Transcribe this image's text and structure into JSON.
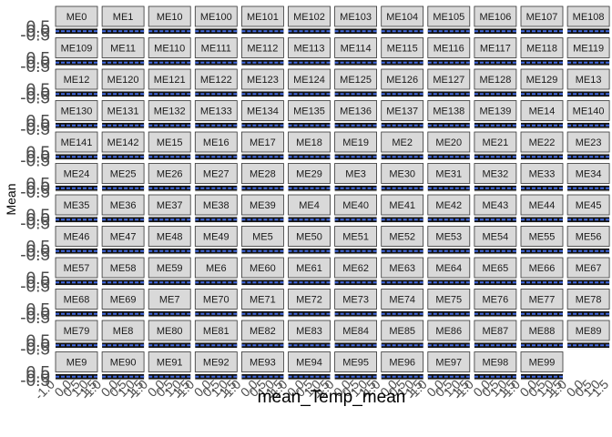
{
  "chart_data": {
    "type": "line",
    "layout": "facet_wrap",
    "ncol": 12,
    "xlabel": "mean_Temp_mean",
    "ylabel": "Mean",
    "y_tick_labels": [
      "-0.5",
      "0.0",
      "0.5"
    ],
    "x_tick_labels": [
      "-1.0",
      "0.0",
      "0.5",
      "1.0",
      "1.5"
    ],
    "xlim": [
      -1.0,
      1.5
    ],
    "ylim": [
      -0.5,
      0.5
    ],
    "grid": true,
    "legend": "none",
    "colors": {
      "line": "#4169e1",
      "ribbon": "#000000",
      "strip_fill": "#d9d9d9",
      "strip_border": "#333333",
      "panel_bg": "#ebebeb"
    },
    "panels": [
      "ME0",
      "ME1",
      "ME10",
      "ME100",
      "ME101",
      "ME102",
      "ME103",
      "ME104",
      "ME105",
      "ME106",
      "ME107",
      "ME108",
      "ME109",
      "ME11",
      "ME110",
      "ME111",
      "ME112",
      "ME113",
      "ME114",
      "ME115",
      "ME116",
      "ME117",
      "ME118",
      "ME119",
      "ME12",
      "ME120",
      "ME121",
      "ME122",
      "ME123",
      "ME124",
      "ME125",
      "ME126",
      "ME127",
      "ME128",
      "ME129",
      "ME13",
      "ME130",
      "ME131",
      "ME132",
      "ME133",
      "ME134",
      "ME135",
      "ME136",
      "ME137",
      "ME138",
      "ME139",
      "ME14",
      "ME140",
      "ME141",
      "ME142",
      "ME15",
      "ME16",
      "ME17",
      "ME18",
      "ME19",
      "ME2",
      "ME20",
      "ME21",
      "ME22",
      "ME23",
      "ME24",
      "ME25",
      "ME26",
      "ME27",
      "ME28",
      "ME29",
      "ME3",
      "ME30",
      "ME31",
      "ME32",
      "ME33",
      "ME34",
      "ME35",
      "ME36",
      "ME37",
      "ME38",
      "ME39",
      "ME4",
      "ME40",
      "ME41",
      "ME42",
      "ME43",
      "ME44",
      "ME45",
      "ME46",
      "ME47",
      "ME48",
      "ME49",
      "ME5",
      "ME50",
      "ME51",
      "ME52",
      "ME53",
      "ME54",
      "ME55",
      "ME56",
      "ME57",
      "ME58",
      "ME59",
      "ME6",
      "ME60",
      "ME61",
      "ME62",
      "ME63",
      "ME64",
      "ME65",
      "ME66",
      "ME67",
      "ME68",
      "ME69",
      "ME7",
      "ME70",
      "ME71",
      "ME72",
      "ME73",
      "ME74",
      "ME75",
      "ME76",
      "ME77",
      "ME78",
      "ME79",
      "ME8",
      "ME80",
      "ME81",
      "ME82",
      "ME83",
      "ME84",
      "ME85",
      "ME86",
      "ME87",
      "ME88",
      "ME89",
      "ME9",
      "ME90",
      "ME91",
      "ME92",
      "ME93",
      "ME94",
      "ME95",
      "ME96",
      "ME97",
      "ME98",
      "ME99"
    ],
    "series": [
      {
        "x": [
          -1.0,
          1.5
        ],
        "y": [
          0.0,
          0.0
        ]
      }
    ]
  }
}
